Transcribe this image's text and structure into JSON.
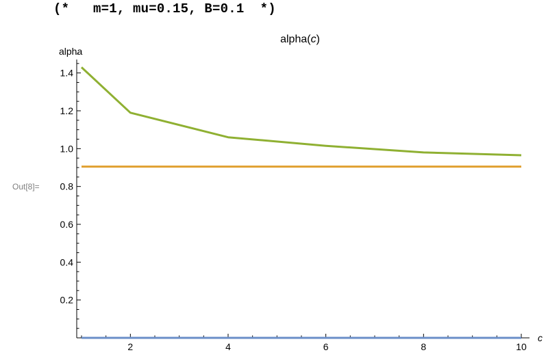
{
  "cell": {
    "comment": "(*   m=1, mu=0.15, B=0.1  *)",
    "out_label": "Out[8]="
  },
  "chart_data": {
    "type": "line",
    "title_prefix": "alpha(",
    "title_var": "c",
    "title_suffix": ")",
    "xlabel": "c",
    "ylabel": "alpha",
    "xlim": [
      1,
      10
    ],
    "ylim": [
      0,
      1.5
    ],
    "xticks": [
      2,
      4,
      6,
      8,
      10
    ],
    "xtick_labels": [
      "2",
      "4",
      "6",
      "8",
      "10"
    ],
    "yticks": [
      0.2,
      0.4,
      0.6,
      0.8,
      1.0,
      1.2,
      1.4
    ],
    "ytick_labels": [
      "0.2",
      "0.4",
      "0.6",
      "0.8",
      "1.0",
      "1.2",
      "1.4"
    ],
    "grid": false,
    "series": [
      {
        "color": "#8fb032",
        "x": [
          1,
          2,
          4,
          6,
          8,
          10
        ],
        "y": [
          1.43,
          1.19,
          1.06,
          1.015,
          0.98,
          0.965
        ]
      },
      {
        "color": "#e0a030",
        "x": [
          1,
          10
        ],
        "y": [
          0.905,
          0.905
        ]
      },
      {
        "color": "#6a8ec8",
        "x": [
          1,
          10
        ],
        "y": [
          0.0,
          0.0
        ]
      }
    ]
  }
}
